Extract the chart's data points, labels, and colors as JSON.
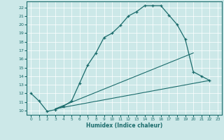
{
  "xlabel": "Humidex (Indice chaleur)",
  "ylabel": "",
  "bg_color": "#cce8e8",
  "line_color": "#1a6b6b",
  "xlim": [
    -0.5,
    23.5
  ],
  "ylim": [
    9.5,
    22.7
  ],
  "xticks": [
    0,
    1,
    2,
    3,
    4,
    5,
    6,
    7,
    8,
    9,
    10,
    11,
    12,
    13,
    14,
    15,
    16,
    17,
    18,
    19,
    20,
    21,
    22,
    23
  ],
  "yticks": [
    10,
    11,
    12,
    13,
    14,
    15,
    16,
    17,
    18,
    19,
    20,
    21,
    22
  ],
  "curve1_x": [
    0,
    1,
    2,
    3,
    4,
    5,
    6,
    7,
    8,
    9,
    10,
    11,
    12,
    13,
    14,
    15,
    16,
    17,
    18,
    19,
    20,
    21,
    22
  ],
  "curve1_y": [
    12.0,
    11.1,
    9.9,
    10.1,
    10.5,
    11.1,
    13.2,
    15.3,
    16.7,
    18.5,
    19.0,
    19.9,
    21.0,
    21.5,
    22.2,
    22.2,
    22.2,
    21.1,
    20.0,
    18.3,
    14.5,
    14.0,
    13.5
  ],
  "curve2_x": [
    3,
    22
  ],
  "curve2_y": [
    10.2,
    13.5
  ],
  "curve3_x": [
    3,
    20
  ],
  "curve3_y": [
    10.2,
    16.7
  ]
}
